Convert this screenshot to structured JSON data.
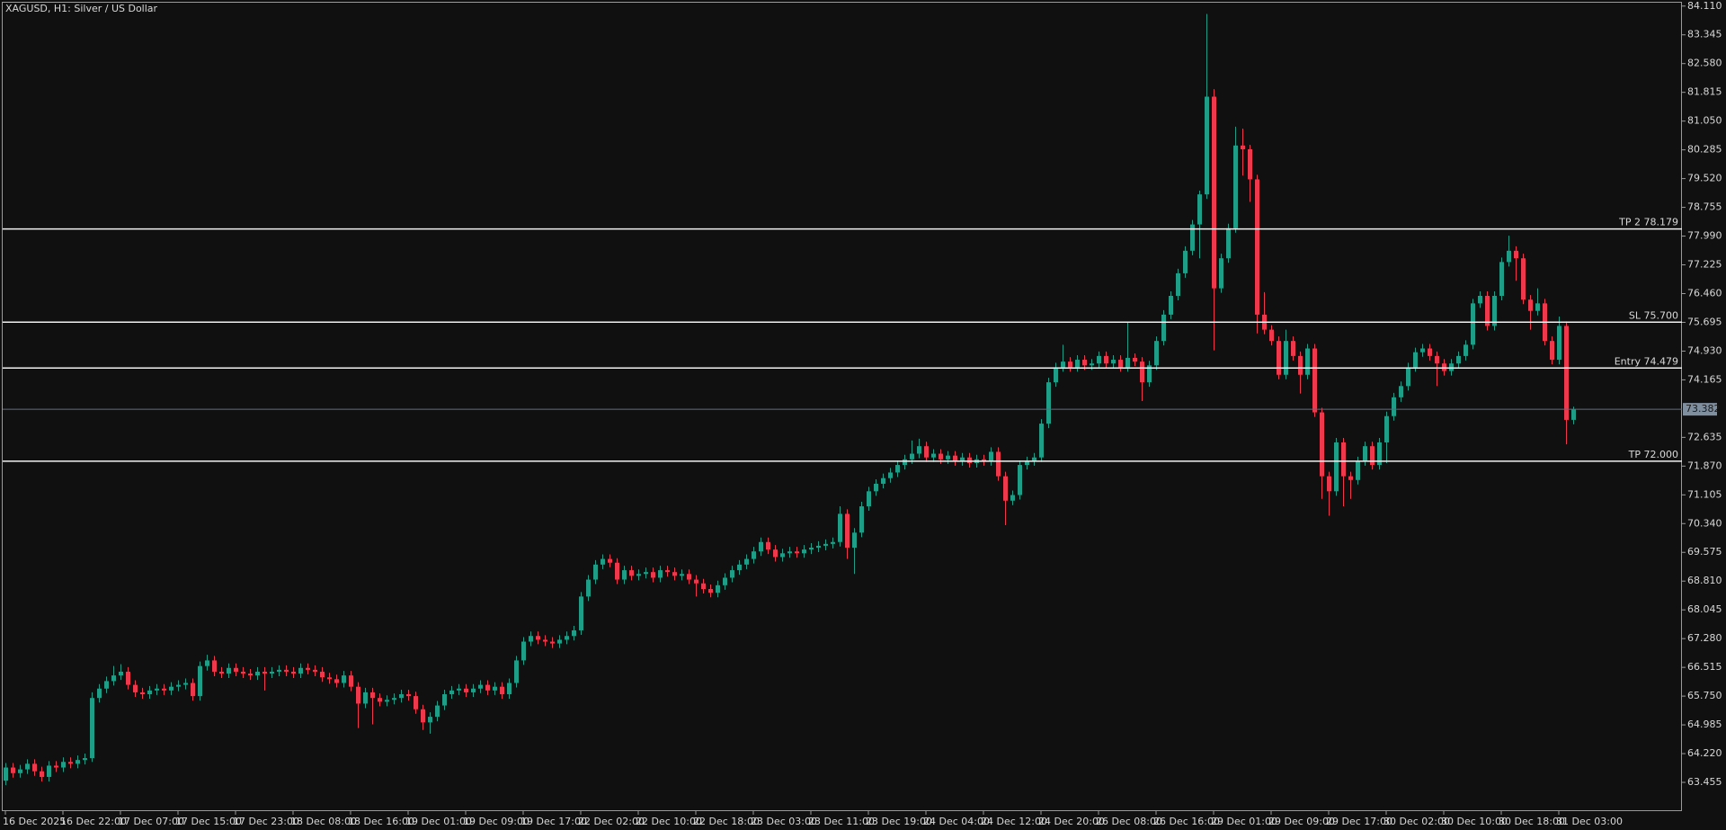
{
  "chart_data": {
    "type": "candlestick",
    "title": "XAGUSD, H1:  Silver / US Dollar",
    "up_color": "#1f9e87",
    "down_color": "#f0384d",
    "ylim": [
      62.69,
      84.2
    ],
    "yticks": [
      {
        "value": 84.11,
        "label": "84.110"
      },
      83.345,
      {
        "value": 82.58,
        "label": "82.580"
      },
      81.815,
      {
        "value": 81.05,
        "label": "81.050"
      },
      80.285,
      {
        "value": 79.52,
        "label": "79.520"
      },
      78.755,
      {
        "value": 77.99,
        "label": "77.990"
      },
      77.225,
      {
        "value": 76.46,
        "label": "76.460"
      },
      75.695,
      {
        "value": 74.93,
        "label": "74.930"
      },
      74.165,
      72.635,
      {
        "value": 71.87,
        "label": "71.870"
      },
      71.105,
      {
        "value": 70.34,
        "label": "70.340"
      },
      69.575,
      {
        "value": 68.81,
        "label": "68.810"
      },
      68.045,
      {
        "value": 67.28,
        "label": "67.280"
      },
      66.515,
      {
        "value": 65.75,
        "label": "65.750"
      },
      64.985,
      {
        "value": 64.22,
        "label": "64.220"
      },
      63.455
    ],
    "hlines": [
      {
        "label": "TP 2 78.179",
        "value": 78.179
      },
      {
        "label": "SL 75.700",
        "value": 75.7
      },
      {
        "label": "Entry 74.479",
        "value": 74.479
      },
      {
        "label": "TP 72.000",
        "value": 72.0
      }
    ],
    "bid": 73.382,
    "categories": [
      "16 Dec 2025",
      null,
      null,
      null,
      null,
      null,
      null,
      null,
      "16 Dec 22:00",
      null,
      null,
      null,
      null,
      null,
      null,
      null,
      "17 Dec 07:00",
      null,
      null,
      null,
      null,
      null,
      null,
      null,
      "17 Dec 15:00",
      null,
      null,
      null,
      null,
      null,
      null,
      null,
      "17 Dec 23:00",
      null,
      null,
      null,
      null,
      null,
      null,
      null,
      "18 Dec 08:00",
      null,
      null,
      null,
      null,
      null,
      null,
      null,
      "18 Dec 16:00",
      null,
      null,
      null,
      null,
      null,
      null,
      null,
      "19 Dec 01:00",
      null,
      null,
      null,
      null,
      null,
      null,
      null,
      "19 Dec 09:00",
      null,
      null,
      null,
      null,
      null,
      null,
      null,
      "19 Dec 17:00",
      null,
      null,
      null,
      null,
      null,
      null,
      null,
      "22 Dec 02:00",
      null,
      null,
      null,
      null,
      null,
      null,
      null,
      "22 Dec 10:00",
      null,
      null,
      null,
      null,
      null,
      null,
      null,
      "22 Dec 18:00",
      null,
      null,
      null,
      null,
      null,
      null,
      null,
      "23 Dec 03:00",
      null,
      null,
      null,
      null,
      null,
      null,
      null,
      "23 Dec 11:00",
      null,
      null,
      null,
      null,
      null,
      null,
      null,
      "23 Dec 19:00",
      null,
      null,
      null,
      null,
      null,
      null,
      null,
      "24 Dec 04:00",
      null,
      null,
      null,
      null,
      null,
      null,
      null,
      "24 Dec 12:00",
      null,
      null,
      null,
      null,
      null,
      null,
      null,
      "24 Dec 20:00",
      null,
      null,
      null,
      null,
      null,
      null,
      null,
      "26 Dec 08:00",
      null,
      null,
      null,
      null,
      null,
      null,
      null,
      "26 Dec 16:00",
      null,
      null,
      null,
      null,
      null,
      null,
      null,
      "29 Dec 01:00",
      null,
      null,
      null,
      null,
      null,
      null,
      null,
      "29 Dec 09:00",
      null,
      null,
      null,
      null,
      null,
      null,
      null,
      "29 Dec 17:00",
      null,
      null,
      null,
      null,
      null,
      null,
      null,
      "30 Dec 02:00",
      null,
      null,
      null,
      null,
      null,
      null,
      null,
      "30 Dec 10:00",
      null,
      null,
      null,
      null,
      null,
      null,
      null,
      "30 Dec 18:00",
      null,
      null,
      null,
      null,
      null,
      null,
      null,
      "31 Dec 03:00",
      null,
      null
    ],
    "open": [
      63.5,
      63.85,
      63.7,
      63.8,
      63.95,
      63.75,
      63.6,
      63.9,
      63.85,
      64.0,
      63.95,
      64.05,
      64.1,
      65.7,
      65.95,
      66.15,
      66.3,
      66.4,
      66.05,
      65.85,
      65.8,
      65.9,
      65.95,
      65.9,
      66.0,
      66.05,
      66.1,
      65.75,
      66.55,
      66.7,
      66.4,
      66.35,
      66.5,
      66.4,
      66.35,
      66.3,
      66.4,
      66.35,
      66.4,
      66.45,
      66.4,
      66.35,
      66.5,
      66.45,
      66.4,
      66.25,
      66.2,
      66.1,
      66.3,
      66.0,
      65.55,
      65.85,
      65.7,
      65.6,
      65.65,
      65.7,
      65.8,
      65.75,
      65.4,
      65.05,
      65.2,
      65.5,
      65.8,
      65.9,
      65.95,
      65.85,
      65.95,
      66.05,
      65.9,
      66.0,
      65.8,
      66.1,
      66.7,
      67.2,
      67.35,
      67.25,
      67.2,
      67.15,
      67.25,
      67.35,
      67.5,
      68.4,
      68.85,
      69.25,
      69.4,
      69.3,
      68.85,
      69.1,
      68.95,
      69.0,
      69.05,
      68.9,
      69.1,
      69.05,
      68.95,
      69.0,
      68.85,
      68.75,
      68.6,
      68.5,
      68.7,
      68.9,
      69.1,
      69.25,
      69.4,
      69.6,
      69.85,
      69.65,
      69.45,
      69.55,
      69.6,
      69.55,
      69.65,
      69.7,
      69.75,
      69.8,
      69.85,
      70.6,
      69.7,
      70.1,
      70.8,
      71.2,
      71.4,
      71.55,
      71.7,
      71.9,
      72.05,
      72.2,
      72.4,
      72.1,
      72.2,
      72.05,
      72.15,
      72.0,
      72.1,
      71.95,
      72.05,
      72.0,
      72.25,
      71.6,
      70.95,
      71.1,
      71.9,
      72.0,
      72.1,
      73.0,
      74.1,
      74.5,
      74.65,
      74.5,
      74.7,
      74.55,
      74.6,
      74.8,
      74.6,
      74.7,
      74.5,
      74.75,
      74.65,
      74.1,
      74.55,
      75.2,
      75.9,
      76.4,
      77.0,
      77.6,
      78.3,
      79.1,
      81.7,
      76.6,
      77.4,
      78.2,
      80.4,
      80.3,
      79.5,
      75.9,
      75.5,
      75.2,
      74.3,
      75.2,
      74.8,
      74.3,
      75.0,
      73.3,
      71.6,
      71.2,
      72.5,
      71.6,
      71.5,
      72.0,
      72.4,
      71.9,
      72.5,
      73.2,
      73.7,
      74.0,
      74.5,
      74.9,
      75.0,
      74.8,
      74.6,
      74.4,
      74.6,
      74.8,
      75.1,
      76.2,
      76.4,
      75.6,
      76.4,
      77.3,
      77.6,
      77.4,
      76.3,
      76.0,
      76.2,
      75.2,
      74.7,
      75.6,
      73.1
    ],
    "high": [
      63.97,
      63.97,
      63.92,
      64.07,
      64.07,
      63.87,
      64.02,
      64.02,
      64.12,
      64.12,
      64.17,
      64.22,
      65.85,
      66.07,
      66.27,
      66.55,
      66.6,
      66.52,
      66.17,
      65.97,
      66.02,
      66.07,
      66.07,
      66.12,
      66.17,
      66.22,
      66.22,
      66.67,
      66.85,
      66.82,
      66.52,
      66.62,
      66.62,
      66.52,
      66.47,
      66.52,
      66.52,
      66.52,
      66.57,
      66.57,
      66.52,
      66.62,
      66.62,
      66.57,
      66.52,
      66.37,
      66.32,
      66.42,
      66.42,
      66.12,
      65.97,
      65.97,
      65.82,
      65.77,
      65.82,
      65.92,
      65.92,
      65.87,
      65.52,
      65.32,
      65.62,
      65.92,
      66.02,
      66.07,
      66.07,
      66.07,
      66.17,
      66.17,
      66.12,
      66.12,
      66.22,
      66.82,
      67.32,
      67.47,
      67.47,
      67.37,
      67.32,
      67.37,
      67.47,
      67.62,
      68.52,
      68.97,
      69.37,
      69.52,
      69.52,
      69.42,
      69.22,
      69.22,
      69.12,
      69.17,
      69.17,
      69.22,
      69.22,
      69.17,
      69.12,
      69.12,
      68.97,
      68.87,
      68.72,
      68.82,
      69.02,
      69.22,
      69.37,
      69.52,
      69.72,
      69.97,
      69.97,
      69.77,
      69.67,
      69.72,
      69.72,
      69.77,
      69.82,
      69.87,
      69.92,
      69.97,
      70.8,
      70.72,
      70.22,
      70.92,
      71.32,
      71.52,
      71.67,
      71.82,
      72.02,
      72.17,
      72.55,
      72.6,
      72.52,
      72.32,
      72.32,
      72.27,
      72.27,
      72.22,
      72.22,
      72.17,
      72.17,
      72.37,
      72.37,
      71.72,
      71.22,
      72.02,
      72.12,
      72.22,
      73.12,
      74.22,
      74.62,
      75.1,
      74.77,
      74.82,
      74.82,
      74.72,
      74.92,
      74.92,
      74.82,
      74.82,
      75.7,
      74.87,
      74.77,
      74.67,
      75.32,
      76.02,
      76.52,
      77.12,
      77.72,
      78.42,
      79.2,
      83.9,
      81.9,
      77.52,
      78.32,
      80.9,
      80.85,
      80.42,
      79.62,
      76.5,
      75.62,
      75.32,
      75.5,
      75.32,
      74.92,
      75.12,
      75.12,
      73.42,
      71.72,
      72.62,
      72.62,
      71.72,
      72.12,
      72.52,
      72.52,
      72.62,
      73.32,
      73.82,
      74.12,
      74.62,
      75.02,
      75.12,
      75.12,
      74.92,
      74.72,
      74.72,
      74.92,
      75.22,
      76.32,
      76.52,
      76.52,
      76.52,
      77.42,
      78.0,
      77.72,
      77.52,
      76.42,
      76.6,
      76.32,
      75.32,
      75.85,
      75.72,
      73.45
    ],
    "low": [
      63.38,
      63.58,
      63.58,
      63.68,
      63.63,
      63.48,
      63.48,
      63.73,
      63.73,
      63.83,
      63.83,
      63.93,
      64.0,
      65.58,
      65.83,
      66.03,
      66.18,
      65.93,
      65.73,
      65.68,
      65.68,
      65.78,
      65.78,
      65.78,
      65.88,
      65.93,
      65.63,
      65.63,
      66.43,
      66.28,
      66.23,
      66.23,
      66.28,
      66.23,
      66.18,
      66.18,
      65.9,
      66.23,
      66.28,
      66.28,
      66.23,
      66.23,
      66.33,
      66.28,
      66.13,
      66.08,
      65.98,
      65.98,
      65.88,
      64.9,
      65.43,
      65.0,
      65.48,
      65.48,
      65.53,
      65.58,
      65.63,
      65.28,
      64.85,
      64.75,
      65.08,
      65.38,
      65.68,
      65.78,
      65.73,
      65.73,
      65.83,
      65.78,
      65.78,
      65.68,
      65.68,
      65.98,
      66.58,
      67.08,
      67.13,
      67.08,
      67.03,
      67.03,
      67.13,
      67.23,
      67.38,
      68.28,
      68.73,
      69.13,
      69.18,
      68.73,
      68.73,
      68.83,
      68.83,
      68.88,
      68.78,
      68.78,
      68.93,
      68.83,
      68.83,
      68.73,
      68.4,
      68.48,
      68.38,
      68.38,
      68.58,
      68.78,
      68.98,
      69.13,
      69.28,
      69.48,
      69.53,
      69.33,
      69.33,
      69.43,
      69.43,
      69.43,
      69.53,
      69.58,
      69.63,
      69.68,
      69.73,
      69.4,
      69.0,
      69.98,
      70.68,
      71.08,
      71.28,
      71.43,
      71.58,
      71.78,
      71.93,
      72.08,
      71.98,
      71.98,
      71.93,
      71.93,
      71.88,
      71.88,
      71.83,
      71.83,
      71.88,
      71.88,
      71.48,
      70.3,
      70.83,
      70.98,
      71.78,
      71.88,
      71.98,
      72.88,
      73.98,
      74.38,
      74.38,
      74.38,
      74.43,
      74.43,
      74.48,
      74.48,
      74.48,
      74.38,
      74.38,
      74.53,
      73.6,
      73.98,
      74.43,
      75.08,
      75.78,
      76.28,
      76.88,
      77.48,
      77.4,
      78.98,
      74.95,
      76.48,
      77.28,
      78.08,
      79.6,
      78.9,
      75.4,
      75.38,
      75.08,
      74.18,
      74.18,
      74.68,
      73.8,
      74.18,
      73.18,
      71.0,
      70.55,
      71.08,
      70.8,
      71.0,
      71.38,
      71.88,
      71.78,
      71.78,
      71.95,
      73.08,
      73.58,
      73.88,
      74.38,
      74.78,
      74.68,
      74.0,
      74.28,
      74.28,
      74.48,
      74.68,
      74.98,
      76.08,
      75.48,
      75.48,
      76.28,
      77.18,
      76.8,
      76.18,
      75.5,
      75.88,
      75.08,
      74.58,
      74.58,
      72.45,
      72.98
    ],
    "close": [
      63.85,
      63.7,
      63.8,
      63.95,
      63.75,
      63.6,
      63.9,
      63.85,
      64.0,
      63.95,
      64.05,
      64.1,
      65.7,
      65.95,
      66.15,
      66.3,
      66.4,
      66.05,
      65.85,
      65.8,
      65.9,
      65.95,
      65.9,
      66.0,
      66.05,
      66.1,
      65.75,
      66.55,
      66.7,
      66.4,
      66.35,
      66.5,
      66.4,
      66.35,
      66.3,
      66.4,
      66.35,
      66.4,
      66.45,
      66.4,
      66.35,
      66.5,
      66.45,
      66.4,
      66.25,
      66.2,
      66.1,
      66.3,
      66.0,
      65.55,
      65.85,
      65.7,
      65.6,
      65.65,
      65.7,
      65.8,
      65.75,
      65.4,
      65.05,
      65.2,
      65.5,
      65.8,
      65.9,
      65.95,
      65.85,
      65.95,
      66.05,
      65.9,
      66.0,
      65.8,
      66.1,
      66.7,
      67.2,
      67.35,
      67.25,
      67.2,
      67.15,
      67.25,
      67.35,
      67.5,
      68.4,
      68.85,
      69.25,
      69.4,
      69.3,
      68.85,
      69.1,
      68.95,
      69.0,
      69.05,
      68.9,
      69.1,
      69.05,
      68.95,
      69.0,
      68.85,
      68.75,
      68.6,
      68.5,
      68.7,
      68.9,
      69.1,
      69.25,
      69.4,
      69.6,
      69.85,
      69.65,
      69.45,
      69.55,
      69.6,
      69.55,
      69.65,
      69.7,
      69.75,
      69.8,
      69.85,
      70.6,
      69.7,
      70.1,
      70.8,
      71.2,
      71.4,
      71.55,
      71.7,
      71.9,
      72.05,
      72.2,
      72.4,
      72.1,
      72.2,
      72.05,
      72.15,
      72.0,
      72.1,
      71.95,
      72.05,
      72.0,
      72.25,
      71.6,
      70.95,
      71.1,
      71.9,
      72.0,
      72.1,
      73.0,
      74.1,
      74.5,
      74.65,
      74.5,
      74.7,
      74.55,
      74.6,
      74.8,
      74.6,
      74.7,
      74.5,
      74.75,
      74.65,
      74.1,
      74.55,
      75.2,
      75.9,
      76.4,
      77.0,
      77.6,
      78.3,
      79.1,
      81.7,
      76.6,
      77.4,
      78.2,
      80.4,
      80.3,
      79.5,
      75.9,
      75.5,
      75.2,
      74.3,
      75.2,
      74.8,
      74.3,
      75.0,
      73.3,
      71.6,
      71.2,
      72.5,
      71.6,
      71.5,
      72.0,
      72.4,
      71.9,
      72.5,
      73.2,
      73.7,
      74.0,
      74.5,
      74.9,
      75.0,
      74.8,
      74.6,
      74.4,
      74.6,
      74.8,
      75.1,
      76.2,
      76.4,
      75.6,
      76.4,
      77.3,
      77.6,
      77.4,
      76.3,
      76.0,
      76.2,
      75.2,
      74.7,
      75.6,
      73.1,
      73.382
    ]
  }
}
